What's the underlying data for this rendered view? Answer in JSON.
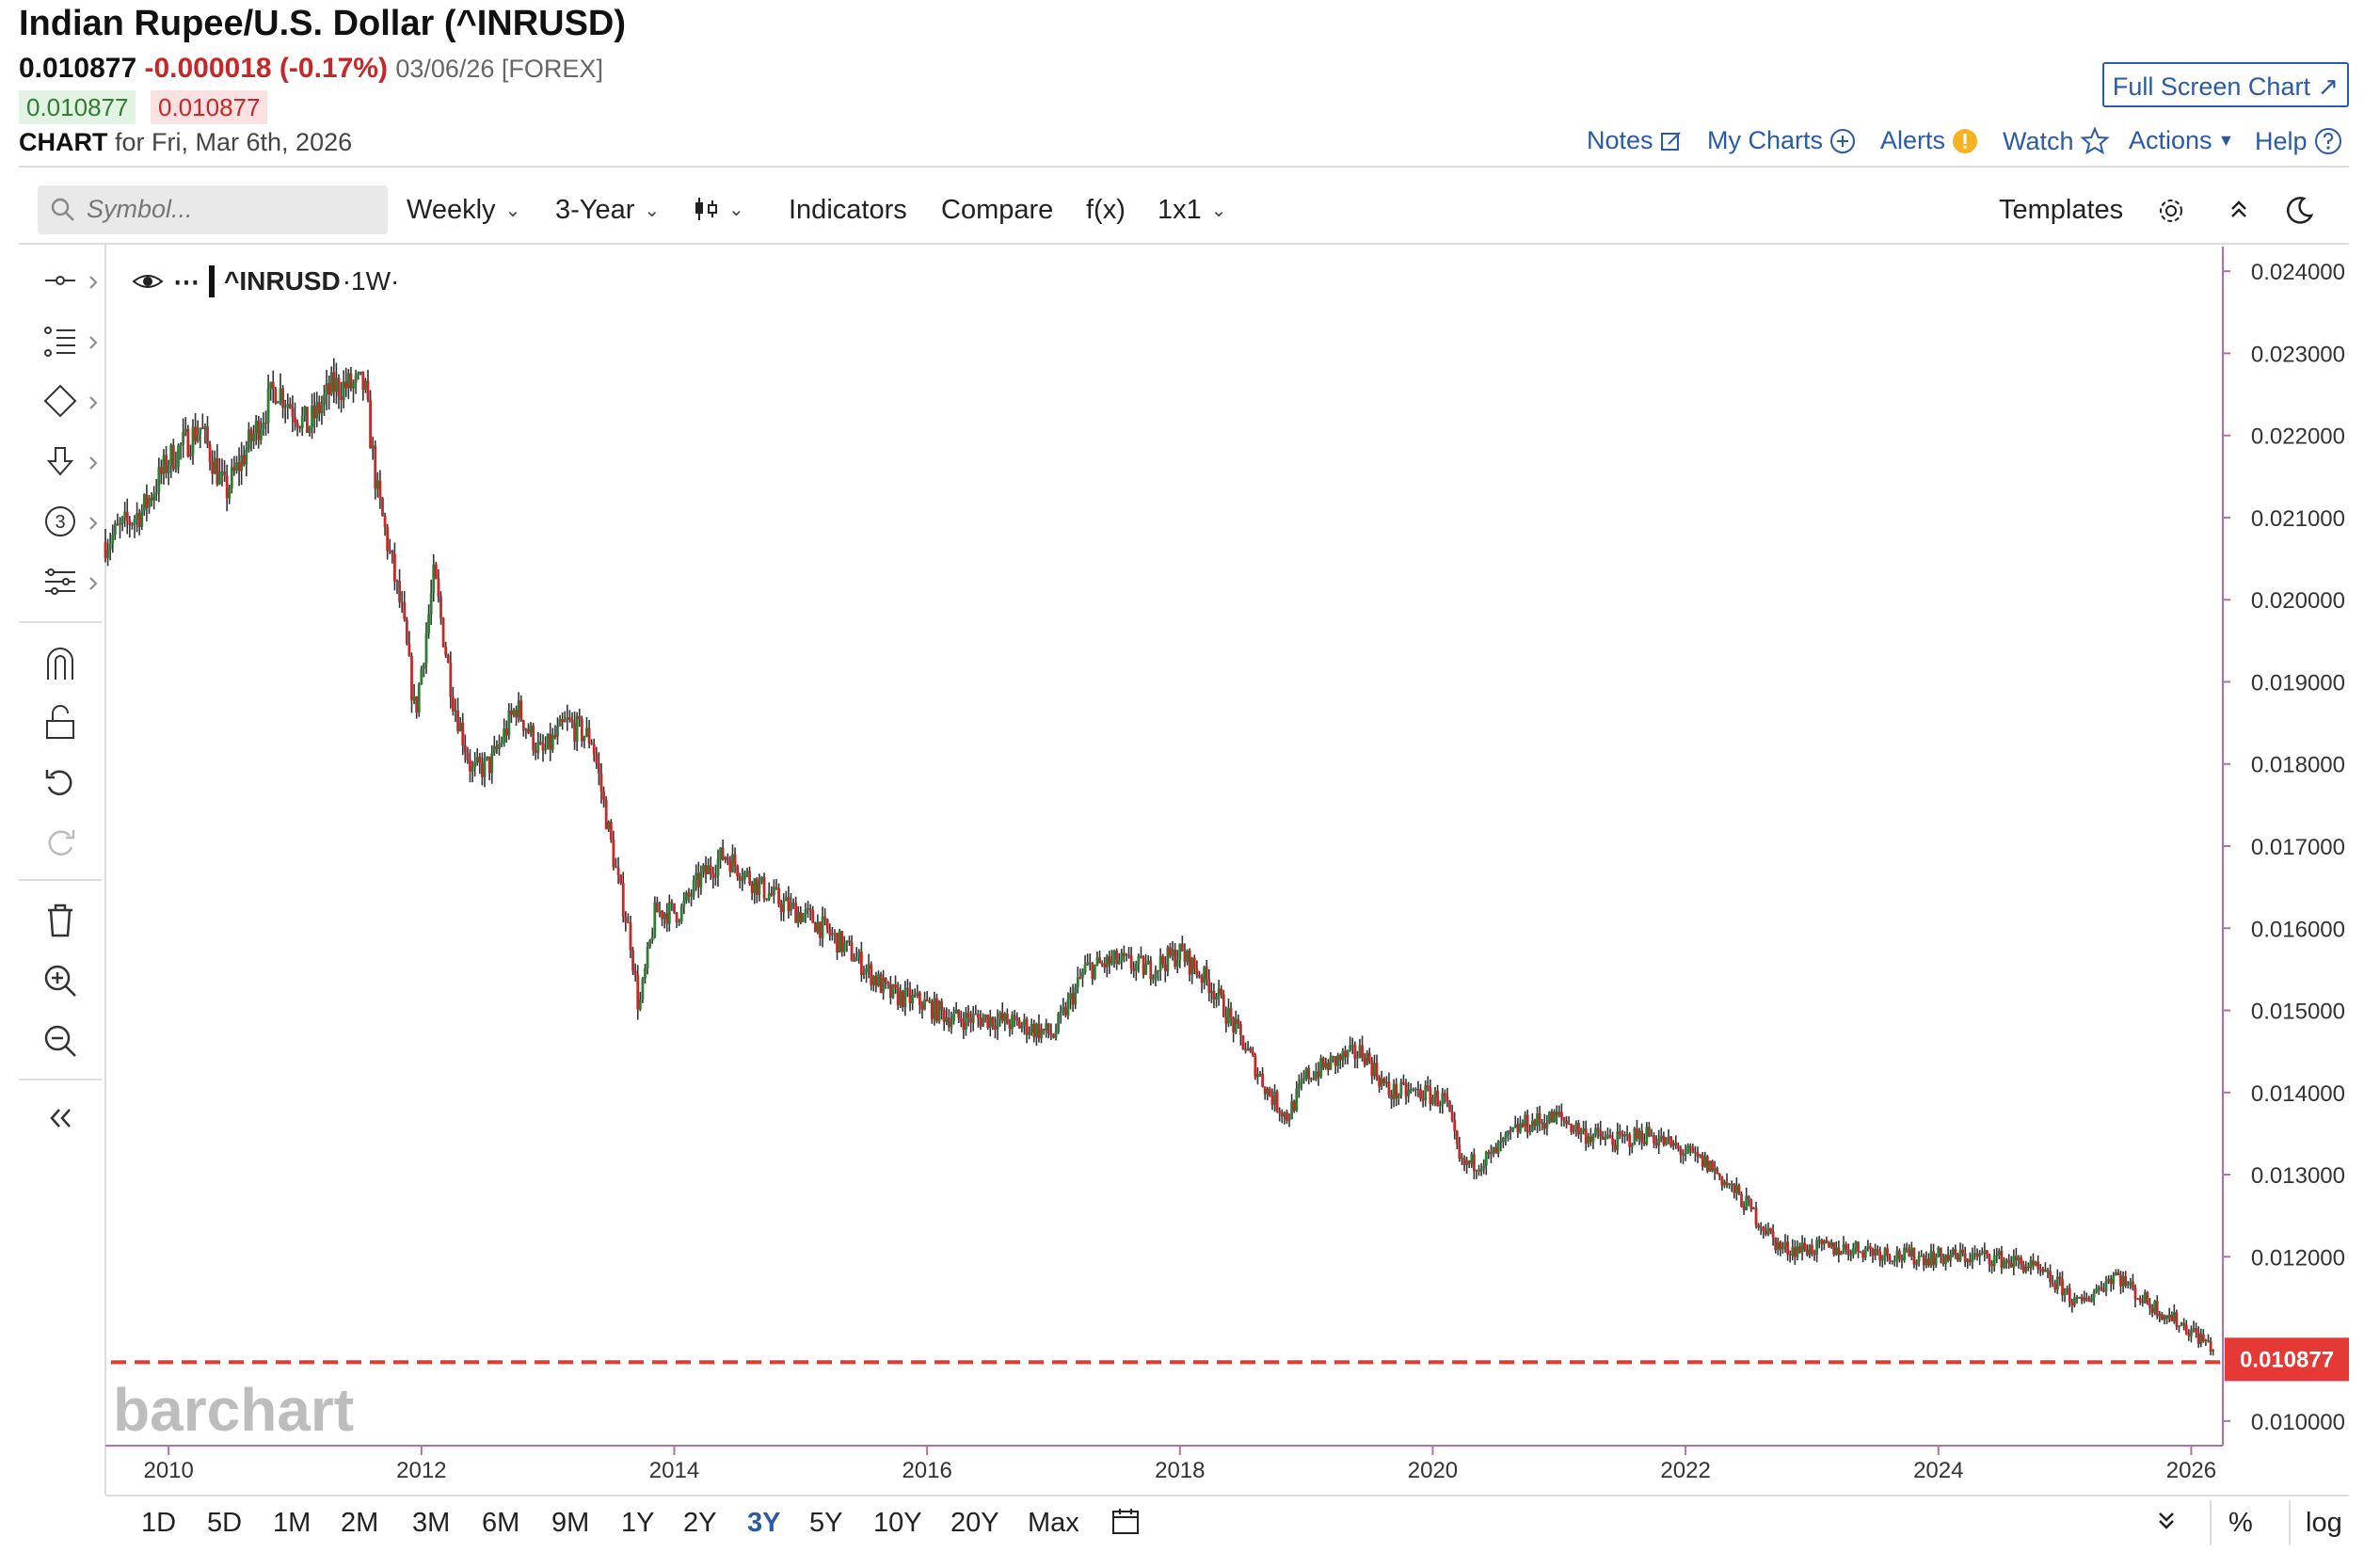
{
  "header": {
    "title": "Indian Rupee/U.S. Dollar (^INRUSD)",
    "last": "0.010877",
    "change": "-0.000018 (-0.17%)",
    "date_exchange": "03/06/26 [FOREX]",
    "bid": "0.010877",
    "ask": "0.010877",
    "chart_label": "CHART",
    "chart_for": "for Fri, Mar 6th, 2026",
    "full_screen": "Full Screen Chart",
    "links": {
      "notes": "Notes",
      "my_charts": "My Charts",
      "alerts": "Alerts",
      "watch": "Watch",
      "actions": "Actions",
      "help": "Help"
    }
  },
  "toolbar": {
    "search_placeholder": "Symbol...",
    "interval": "Weekly",
    "range": "3-Year",
    "indicators": "Indicators",
    "compare": "Compare",
    "fx": "f(x)",
    "layout": "1x1",
    "templates": "Templates"
  },
  "legend": {
    "symbol": "^INRUSD",
    "interval": "·1W·"
  },
  "watermark": "barchart",
  "last_price_label": "0.010877",
  "range_buttons": [
    "1D",
    "5D",
    "1M",
    "2M",
    "3M",
    "6M",
    "9M",
    "1Y",
    "2Y",
    "3Y",
    "5Y",
    "10Y",
    "20Y",
    "Max"
  ],
  "active_range": "3Y",
  "bottom_right": {
    "percent": "%",
    "log": "log"
  },
  "colors": {
    "up": "#2e7d32",
    "down": "#c62828",
    "accent": "#2a5aa8",
    "last_line": "#e53935"
  },
  "chart_data": {
    "type": "line",
    "title": "Indian Rupee/U.S. Dollar (^INRUSD)",
    "interval": "Weekly",
    "x_label": "",
    "y_label": "",
    "x_ticks": [
      "2010",
      "2012",
      "2014",
      "2016",
      "2018",
      "2020",
      "2022",
      "2024",
      "2026"
    ],
    "y_ticks": [
      "0.024000",
      "0.023000",
      "0.022000",
      "0.021000",
      "0.020000",
      "0.019000",
      "0.018000",
      "0.017000",
      "0.016000",
      "0.015000",
      "0.014000",
      "0.013000",
      "0.012000",
      "0.010000"
    ],
    "xlim": [
      2009.5,
      2026.25
    ],
    "ylim": [
      0.0097,
      0.0243
    ],
    "last_price": 0.010877,
    "series": [
      {
        "name": "^INRUSD close",
        "points": [
          [
            2009.5,
            0.0207
          ],
          [
            2009.8,
            0.0211
          ],
          [
            2010.0,
            0.0217
          ],
          [
            2010.25,
            0.0221
          ],
          [
            2010.45,
            0.0213
          ],
          [
            2010.7,
            0.0221
          ],
          [
            2010.85,
            0.0226
          ],
          [
            2011.1,
            0.0221
          ],
          [
            2011.3,
            0.0226
          ],
          [
            2011.55,
            0.0226
          ],
          [
            2011.65,
            0.0213
          ],
          [
            2011.85,
            0.0198
          ],
          [
            2011.95,
            0.0186
          ],
          [
            2012.1,
            0.0203
          ],
          [
            2012.25,
            0.0188
          ],
          [
            2012.4,
            0.0179
          ],
          [
            2012.55,
            0.018
          ],
          [
            2012.75,
            0.0187
          ],
          [
            2012.95,
            0.0181
          ],
          [
            2013.15,
            0.0185
          ],
          [
            2013.35,
            0.0183
          ],
          [
            2013.55,
            0.0166
          ],
          [
            2013.65,
            0.0159
          ],
          [
            2013.72,
            0.015
          ],
          [
            2013.85,
            0.0162
          ],
          [
            2014.05,
            0.0162
          ],
          [
            2014.2,
            0.0166
          ],
          [
            2014.4,
            0.0169
          ],
          [
            2014.6,
            0.0166
          ],
          [
            2014.85,
            0.0163
          ],
          [
            2015.1,
            0.0161
          ],
          [
            2015.4,
            0.0157
          ],
          [
            2015.7,
            0.0152
          ],
          [
            2015.95,
            0.0151
          ],
          [
            2016.2,
            0.0149
          ],
          [
            2016.5,
            0.0149
          ],
          [
            2016.8,
            0.0148
          ],
          [
            2017.0,
            0.0147
          ],
          [
            2017.25,
            0.0155
          ],
          [
            2017.5,
            0.0156
          ],
          [
            2017.75,
            0.0155
          ],
          [
            2018.0,
            0.0157
          ],
          [
            2018.25,
            0.0153
          ],
          [
            2018.5,
            0.0146
          ],
          [
            2018.7,
            0.014
          ],
          [
            2018.85,
            0.0137
          ],
          [
            2019.0,
            0.0142
          ],
          [
            2019.25,
            0.0144
          ],
          [
            2019.45,
            0.0145
          ],
          [
            2019.65,
            0.014
          ],
          [
            2019.9,
            0.014
          ],
          [
            2020.1,
            0.0139
          ],
          [
            2020.22,
            0.0131
          ],
          [
            2020.45,
            0.0132
          ],
          [
            2020.7,
            0.0136
          ],
          [
            2021.0,
            0.0137
          ],
          [
            2021.2,
            0.0135
          ],
          [
            2021.45,
            0.0134
          ],
          [
            2021.7,
            0.0135
          ],
          [
            2021.95,
            0.0133
          ],
          [
            2022.2,
            0.0131
          ],
          [
            2022.5,
            0.0126
          ],
          [
            2022.75,
            0.0121
          ],
          [
            2023.0,
            0.0121
          ],
          [
            2023.4,
            0.0121
          ],
          [
            2023.75,
            0.012
          ],
          [
            2024.0,
            0.012
          ],
          [
            2024.4,
            0.012
          ],
          [
            2024.7,
            0.0119
          ],
          [
            2025.0,
            0.0116
          ],
          [
            2025.1,
            0.0114
          ],
          [
            2025.25,
            0.0116
          ],
          [
            2025.4,
            0.0118
          ],
          [
            2025.6,
            0.0115
          ],
          [
            2025.8,
            0.0113
          ],
          [
            2026.0,
            0.0111
          ],
          [
            2026.18,
            0.010877
          ]
        ]
      }
    ]
  }
}
